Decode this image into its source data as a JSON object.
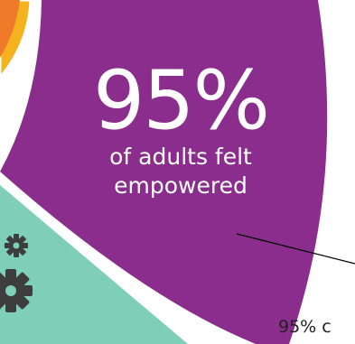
{
  "infographic": {
    "stat": {
      "value": "95%",
      "line1": "of adults felt",
      "line2": "empowered"
    },
    "callout_caption": "95% c",
    "icons": [
      "gear-icon",
      "gear-icon"
    ],
    "colors": {
      "segment_primary": "#8a2d8c",
      "segment_secondary": "#7ecfb6",
      "ring_accent": "#f5b21f",
      "ring_accent_inner": "#ee7a2a",
      "gear": "#3d3d3d",
      "leader_line": "#000000",
      "background": "#ffffff"
    }
  }
}
